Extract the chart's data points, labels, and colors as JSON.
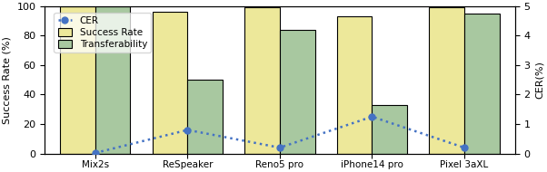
{
  "categories": [
    "Mix2s",
    "ReSpeaker",
    "Reno5 pro",
    "iPhone14 pro",
    "Pixel 3aXL"
  ],
  "success_rate": [
    100,
    96,
    99,
    93,
    99
  ],
  "transferability": [
    100,
    50,
    84,
    33,
    95
  ],
  "cer": [
    0.02,
    0.8,
    0.2,
    1.25,
    0.2
  ],
  "bar_width": 0.38,
  "success_color": "#EDE89A",
  "transfer_color": "#A8C8A0",
  "cer_color": "#4472C4",
  "ylabel_left": "Success Rate (%)",
  "ylabel_right": "CER(%)",
  "ylim_left": [
    0,
    100
  ],
  "ylim_right": [
    0,
    5
  ],
  "yticks_left": [
    0,
    20,
    40,
    60,
    80,
    100
  ],
  "yticks_right": [
    0,
    1,
    2,
    3,
    4,
    5
  ],
  "legend_labels": [
    "CER",
    "Success Rate",
    "Transferability"
  ],
  "figsize": [
    6.02,
    1.9
  ],
  "dpi": 100
}
